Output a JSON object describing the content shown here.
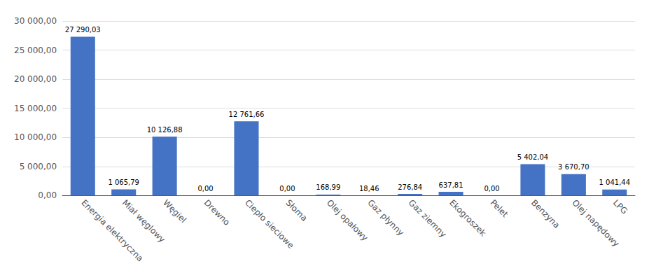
{
  "chart_data": {
    "type": "bar",
    "categories": [
      "Energia elektryczna",
      "Miał węglowy",
      "Węgiel",
      "Drewno",
      "Ciepło sieciowe",
      "Słoma",
      "Olej opałowy",
      "Gaz płynny",
      "Gaz ziemny",
      "Ekogroszek",
      "Pelet",
      "Benzyna",
      "Olej napędowy",
      "LPG"
    ],
    "values": [
      27290.03,
      1065.79,
      10126.88,
      0.0,
      12761.66,
      0.0,
      168.99,
      18.46,
      276.84,
      637.81,
      0.0,
      5402.04,
      3670.7,
      1041.44
    ],
    "value_labels": [
      "27 290,03",
      "1 065,79",
      "10 126,88",
      "0,00",
      "12 761,66",
      "0,00",
      "168,99",
      "18,46",
      "276,84",
      "637,81",
      "0,00",
      "5 402,04",
      "3 670,70",
      "1 041,44"
    ],
    "color": "#4472C4",
    "ylim": [
      0,
      30000
    ],
    "yticks": [
      {
        "value": 0,
        "label": "0,00"
      },
      {
        "value": 5000,
        "label": "5 000,00"
      },
      {
        "value": 10000,
        "label": "10 000,00"
      },
      {
        "value": 15000,
        "label": "15 000,00"
      },
      {
        "value": 20000,
        "label": "20 000,00"
      },
      {
        "value": 25000,
        "label": "25 000,00"
      },
      {
        "value": 30000,
        "label": "30 000,00"
      }
    ],
    "grid": true,
    "data_labels": true
  }
}
